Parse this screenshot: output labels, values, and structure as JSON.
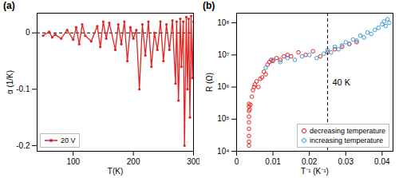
{
  "chart_data": [
    {
      "type": "line",
      "title": "(a)",
      "xlabel": "T(K)",
      "ylabel": "α (1/K)",
      "xlim": [
        40,
        300
      ],
      "xticks": [
        100,
        200,
        300
      ],
      "ylim": [
        -0.21,
        0.035
      ],
      "yticks": [
        0,
        -0.1,
        -0.2
      ],
      "hline": 0,
      "grid": false,
      "legend": "lower left",
      "series": [
        {
          "name": "20 V",
          "color": "#e02424",
          "marker": "circle",
          "line_style": "solid",
          "x": [
            50,
            60,
            65,
            70,
            80,
            90,
            100,
            105,
            110,
            115,
            120,
            130,
            140,
            145,
            150,
            155,
            160,
            170,
            175,
            180,
            185,
            190,
            195,
            200,
            205,
            210,
            215,
            220,
            225,
            230,
            235,
            240,
            245,
            250,
            255,
            260,
            265,
            270,
            272,
            275,
            278,
            280,
            283,
            285,
            288,
            290,
            292,
            294,
            296,
            298,
            300
          ],
          "values": [
            -0.005,
            0.002,
            -0.008,
            -0.003,
            -0.01,
            0.005,
            -0.012,
            0.01,
            -0.02,
            0.015,
            -0.005,
            -0.015,
            0.012,
            -0.025,
            0.02,
            -0.01,
            0.018,
            -0.03,
            0.015,
            -0.02,
            0.02,
            -0.05,
            0.01,
            -0.01,
            0.005,
            -0.1,
            0.015,
            -0.04,
            0.02,
            -0.06,
            0.0,
            -0.03,
            0.02,
            -0.05,
            0.015,
            -0.03,
            0.022,
            -0.09,
            0.02,
            -0.12,
            0.025,
            -0.06,
            0.02,
            -0.2,
            0.028,
            -0.1,
            0.025,
            -0.15,
            0.03,
            -0.08,
            0.02
          ]
        }
      ]
    },
    {
      "type": "scatter",
      "title": "(b)",
      "xlabel": "T⁻¹ (K⁻¹)",
      "ylabel": "R (Ω)",
      "xlim": [
        0,
        0.043
      ],
      "xticks": [
        0,
        0.01,
        0.02,
        0.03,
        0.04
      ],
      "ylim": [
        10000,
        200000000
      ],
      "log": "y",
      "yticks": [
        {
          "value": 10000,
          "label": "10⁴"
        },
        {
          "value": 100000,
          "label": "10⁵"
        },
        {
          "value": 1000000,
          "label": "10⁶"
        },
        {
          "value": 10000000,
          "label": "10⁷"
        },
        {
          "value": 100000000,
          "label": "10⁸"
        }
      ],
      "vline": 0.025,
      "annotations": [
        {
          "x": 0.025,
          "label": "40 K"
        }
      ],
      "grid": false,
      "legend": "lower right",
      "series": [
        {
          "name": "decreasing temperature",
          "color": "#e02424",
          "marker": "open circle",
          "x": [
            0.0034,
            0.0034,
            0.0034,
            0.0034,
            0.0034,
            0.0034,
            0.0034,
            0.0034,
            0.0034,
            0.0036,
            0.0038,
            0.0042,
            0.0045,
            0.0048,
            0.005,
            0.0055,
            0.006,
            0.0065,
            0.007,
            0.0075,
            0.008,
            0.0085,
            0.009,
            0.0095,
            0.01,
            0.011,
            0.012,
            0.013,
            0.014,
            0.015,
            0.017,
            0.019,
            0.021,
            0.023,
            0.025,
            0.027,
            0.029,
            0.031,
            0.033
          ],
          "values": [
            15000,
            20000,
            30000,
            50000,
            80000,
            120000,
            180000,
            250000,
            300000,
            200000,
            280000,
            500000,
            800000,
            1000000,
            1200000,
            1500000,
            1000000,
            1800000,
            2000000,
            3000000,
            2500000,
            5000000,
            6000000,
            7000000,
            6500000,
            8000000,
            7000000,
            9000000,
            10000000,
            9000000,
            12000000,
            10000000,
            13000000,
            9000000,
            12000000,
            15000000,
            18000000,
            22000000,
            25000000
          ]
        },
        {
          "name": "increasing temperature",
          "color": "#3a9ad9",
          "marker": "open circle",
          "x": [
            0.008,
            0.01,
            0.012,
            0.014,
            0.016,
            0.018,
            0.02,
            0.022,
            0.024,
            0.025,
            0.026,
            0.027,
            0.028,
            0.029,
            0.03,
            0.031,
            0.032,
            0.033,
            0.034,
            0.035,
            0.036,
            0.037,
            0.038,
            0.039,
            0.04,
            0.0405,
            0.041,
            0.0415,
            0.042
          ],
          "values": [
            4000000,
            7000000,
            6000000,
            8000000,
            7000000,
            9000000,
            10000000,
            8000000,
            11000000,
            14000000,
            12000000,
            18000000,
            15000000,
            20000000,
            25000000,
            22000000,
            30000000,
            28000000,
            40000000,
            35000000,
            50000000,
            45000000,
            60000000,
            70000000,
            90000000,
            110000000,
            80000000,
            130000000,
            100000000
          ]
        }
      ]
    }
  ]
}
